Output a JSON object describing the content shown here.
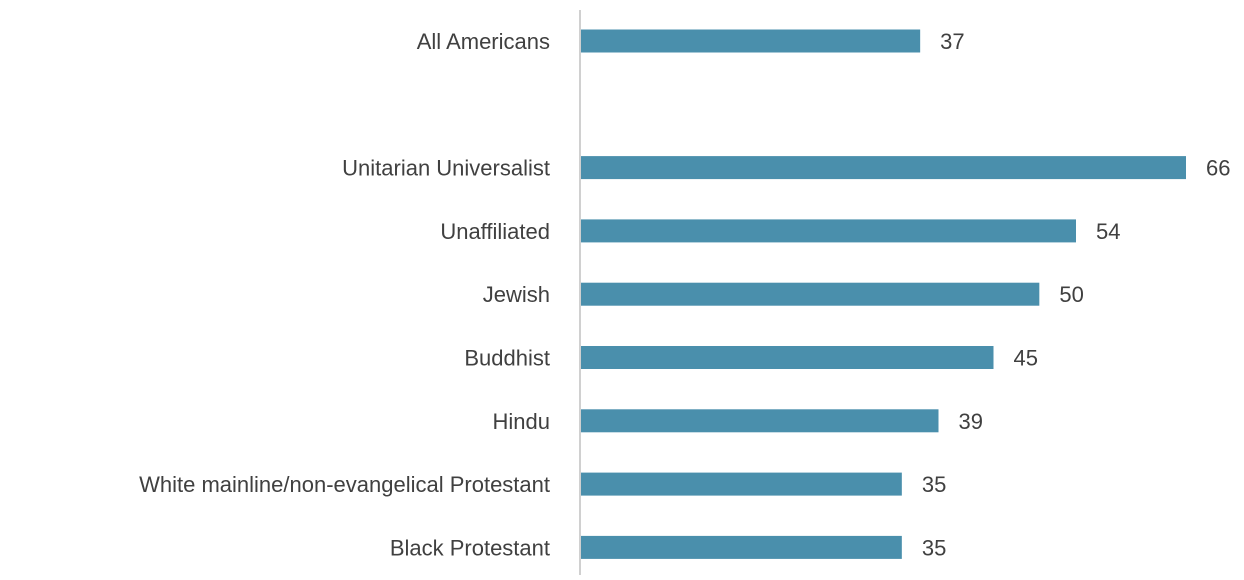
{
  "colors": {
    "bar": "#4a8fac",
    "axis": "#d0d0d0",
    "text": "#404040"
  },
  "chart_data": {
    "type": "bar",
    "orientation": "horizontal",
    "title": "",
    "xlabel": "",
    "ylabel": "",
    "xlim": [
      0,
      66
    ],
    "grid": false,
    "legend": "none",
    "categories": [
      "All Americans",
      "",
      "Unitarian Universalist",
      "Unaffiliated",
      "Jewish",
      "Buddhist",
      "Hindu",
      "White mainline/non-evangelical Protestant",
      "Black Protestant"
    ],
    "values": [
      37,
      null,
      66,
      54,
      50,
      45,
      39,
      35,
      35
    ],
    "data_labels": [
      "37",
      "",
      "66",
      "54",
      "50",
      "45",
      "39",
      "35",
      "35"
    ]
  }
}
